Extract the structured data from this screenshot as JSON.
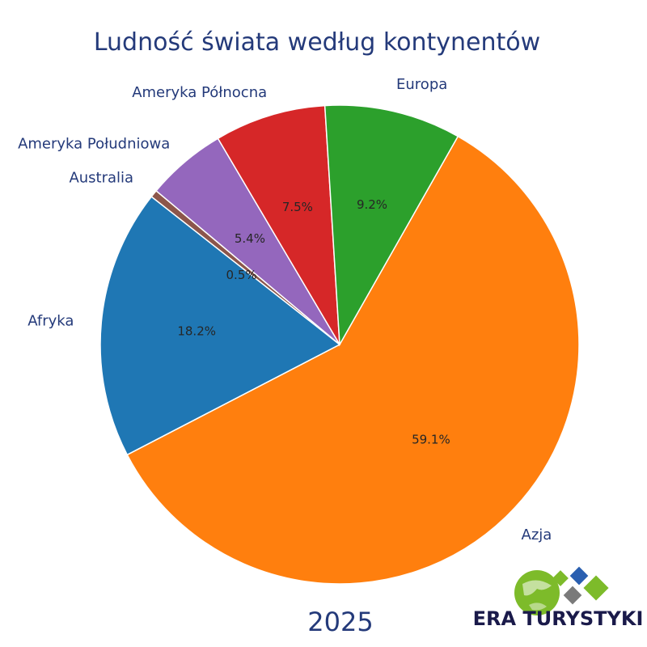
{
  "chart_data": {
    "type": "pie",
    "title": "Ludność świata według kontynentów",
    "subtitle": "2025",
    "slices": [
      {
        "label": "Azja",
        "value": 59.1,
        "pct_label": "59.1%",
        "color": "#ff7f0e"
      },
      {
        "label": "Afryka",
        "value": 18.2,
        "pct_label": "18.2%",
        "color": "#1f77b4"
      },
      {
        "label": "Australia",
        "value": 0.5,
        "pct_label": "0.5%",
        "color": "#8c564b"
      },
      {
        "label": "Ameryka Południowa",
        "value": 5.4,
        "pct_label": "5.4%",
        "color": "#9467bd"
      },
      {
        "label": "Ameryka Północna",
        "value": 7.5,
        "pct_label": "7.5%",
        "color": "#d62728"
      },
      {
        "label": "Europa",
        "value": 9.2,
        "pct_label": "9.2%",
        "color": "#2ca02c"
      }
    ],
    "legend": "none"
  },
  "logo": {
    "text": "ERA TURYSTYKI",
    "colors": [
      "#7dbb2a",
      "#2a5fb0",
      "#7a7a7a",
      "#1d3f8f"
    ],
    "icon": "globe-icon"
  }
}
